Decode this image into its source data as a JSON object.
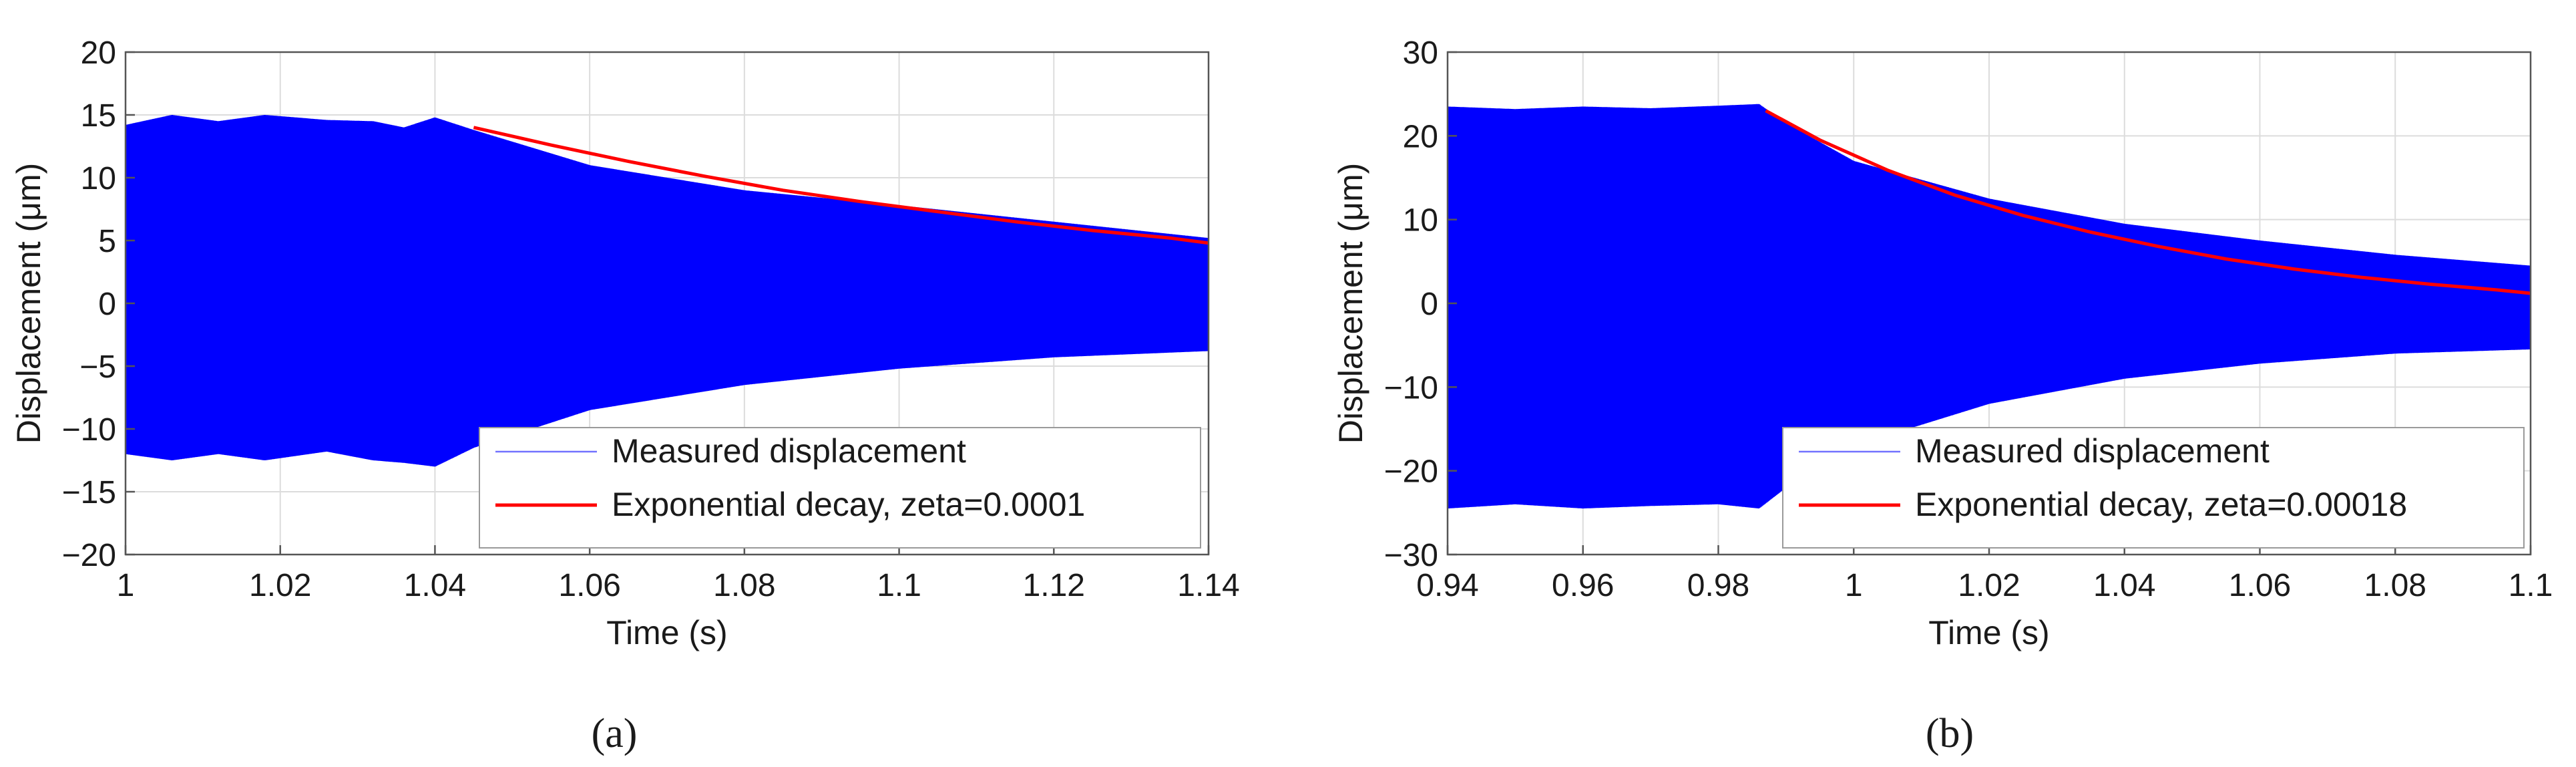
{
  "chart_data": [
    {
      "type": "line",
      "panel_label": "(a)",
      "xlabel": "Time (s)",
      "ylabel": "Displacement (μm)",
      "xlim": [
        1,
        1.14
      ],
      "ylim": [
        -20,
        20
      ],
      "xticks": [
        1,
        1.02,
        1.04,
        1.06,
        1.08,
        1.1,
        1.12,
        1.14
      ],
      "xtick_labels": [
        "1",
        "1.02",
        "1.04",
        "1.06",
        "1.08",
        "1.1",
        "1.12",
        "1.14"
      ],
      "yticks": [
        -20,
        -15,
        -10,
        -5,
        0,
        5,
        10,
        15,
        20
      ],
      "ytick_labels": [
        "−20",
        "−15",
        "−10",
        "−5",
        "0",
        "5",
        "10",
        "15",
        "20"
      ],
      "grid": true,
      "legend_position": "bottom-right",
      "series": [
        {
          "name": "Measured displacement",
          "color": "#0000ff",
          "kind": "oscillation-envelope",
          "upper_envelope": {
            "x": [
              1.0,
              1.006,
              1.012,
              1.018,
              1.026,
              1.032,
              1.036,
              1.04,
              1.045,
              1.06,
              1.08,
              1.1,
              1.12,
              1.14
            ],
            "y": [
              14.2,
              15.0,
              14.5,
              15.0,
              14.6,
              14.5,
              14.0,
              14.8,
              13.8,
              11.0,
              9.0,
              7.8,
              6.5,
              5.2
            ]
          },
          "lower_envelope": {
            "x": [
              1.0,
              1.006,
              1.012,
              1.018,
              1.026,
              1.032,
              1.036,
              1.04,
              1.045,
              1.06,
              1.08,
              1.1,
              1.12,
              1.14
            ],
            "y": [
              -12.0,
              -12.5,
              -12.0,
              -12.5,
              -11.8,
              -12.5,
              -12.7,
              -13.0,
              -11.5,
              -8.5,
              -6.5,
              -5.2,
              -4.3,
              -3.8
            ]
          }
        },
        {
          "name": "Exponential decay, zeta=0.0001",
          "color": "#ff0000",
          "x": [
            1.045,
            1.055,
            1.065,
            1.075,
            1.085,
            1.095,
            1.105,
            1.115,
            1.125,
            1.135,
            1.14
          ],
          "y": [
            14.0,
            12.6,
            11.3,
            10.1,
            9.0,
            8.1,
            7.3,
            6.5,
            5.8,
            5.2,
            4.8
          ]
        }
      ]
    },
    {
      "type": "line",
      "panel_label": "(b)",
      "xlabel": "Time (s)",
      "ylabel": "Displacement (μm)",
      "xlim": [
        0.94,
        1.1
      ],
      "ylim": [
        -30,
        30
      ],
      "xticks": [
        0.94,
        0.96,
        0.98,
        1,
        1.02,
        1.04,
        1.06,
        1.08,
        1.1
      ],
      "xtick_labels": [
        "0.94",
        "0.96",
        "0.98",
        "1",
        "1.02",
        "1.04",
        "1.06",
        "1.08",
        "1.1"
      ],
      "yticks": [
        -30,
        -20,
        -10,
        0,
        10,
        20,
        30
      ],
      "ytick_labels": [
        "−30",
        "−20",
        "−10",
        "0",
        "10",
        "20",
        "30"
      ],
      "grid": true,
      "legend_position": "bottom-right",
      "series": [
        {
          "name": "Measured displacement",
          "color": "#0000ff",
          "kind": "oscillation-envelope",
          "upper_envelope": {
            "x": [
              0.94,
              0.95,
              0.96,
              0.97,
              0.98,
              0.986,
              0.99,
              1.0,
              1.02,
              1.04,
              1.06,
              1.08,
              1.1
            ],
            "y": [
              23.5,
              23.2,
              23.5,
              23.3,
              23.6,
              23.8,
              21.5,
              17.0,
              12.5,
              9.5,
              7.5,
              5.8,
              4.5
            ]
          },
          "lower_envelope": {
            "x": [
              0.94,
              0.95,
              0.96,
              0.97,
              0.98,
              0.986,
              0.99,
              1.0,
              1.02,
              1.04,
              1.06,
              1.08,
              1.1
            ],
            "y": [
              -24.5,
              -24.0,
              -24.5,
              -24.2,
              -24.0,
              -24.5,
              -22.0,
              -17.0,
              -12.0,
              -9.0,
              -7.2,
              -6.0,
              -5.5
            ]
          }
        },
        {
          "name": "Exponential decay, zeta=0.00018",
          "color": "#ff0000",
          "x": [
            0.987,
            0.995,
            1.005,
            1.015,
            1.025,
            1.035,
            1.045,
            1.055,
            1.065,
            1.075,
            1.085,
            1.095,
            1.1
          ],
          "y": [
            23.0,
            19.5,
            15.9,
            12.9,
            10.5,
            8.5,
            6.8,
            5.3,
            4.1,
            3.1,
            2.3,
            1.6,
            1.2
          ]
        }
      ]
    }
  ]
}
